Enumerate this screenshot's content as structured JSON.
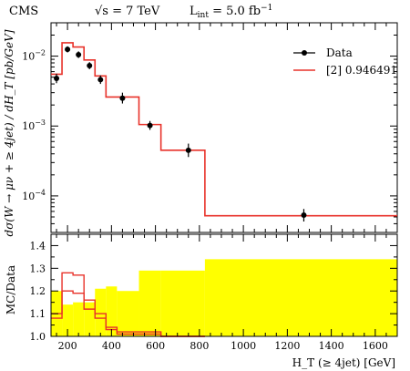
{
  "header": {
    "experiment": "CMS",
    "energy": "√s = 7 TeV",
    "luminosity": "L",
    "luminosity_sub": "int",
    "luminosity_value": " = 5.0 fb",
    "luminosity_exp": "−1"
  },
  "chart_data": [
    {
      "type": "line",
      "panel": "main",
      "ylabel": "dσ(W → μν + ≥ 4jet) / dH_T [pb/GeV]",
      "yscale": "log",
      "ylim": [
        3e-05,
        0.03
      ],
      "xlim": [
        125,
        1700
      ],
      "y_ticks": [
        {
          "value": 0.01,
          "label": "10",
          "exp": "−2"
        },
        {
          "value": 0.001,
          "label": "10",
          "exp": "−3"
        },
        {
          "value": 0.0001,
          "label": "10",
          "exp": "−4"
        }
      ],
      "legend": {
        "position": "top-right",
        "entries": [
          {
            "label": "Data",
            "color": "#000000",
            "marker": "point-errorbar"
          },
          {
            "label": "[2] 0.946491",
            "color": "#e8322a",
            "marker": "line"
          }
        ]
      },
      "series": [
        {
          "name": "Data",
          "color": "#000000",
          "points": [
            {
              "x": 150,
              "y": 0.0048,
              "ylow": 0.0041,
              "yhigh": 0.0056
            },
            {
              "x": 200,
              "y": 0.0125,
              "ylow": 0.0113,
              "yhigh": 0.0138
            },
            {
              "x": 250,
              "y": 0.0105,
              "ylow": 0.0094,
              "yhigh": 0.0117
            },
            {
              "x": 300,
              "y": 0.0073,
              "ylow": 0.0065,
              "yhigh": 0.0082
            },
            {
              "x": 350,
              "y": 0.0046,
              "ylow": 0.004,
              "yhigh": 0.0053
            },
            {
              "x": 450,
              "y": 0.0025,
              "ylow": 0.0021,
              "yhigh": 0.003
            },
            {
              "x": 575,
              "y": 0.00102,
              "ylow": 0.00088,
              "yhigh": 0.00118
            },
            {
              "x": 750,
              "y": 0.00045,
              "ylow": 0.00036,
              "yhigh": 0.00056
            },
            {
              "x": 1275,
              "y": 5.3e-05,
              "ylow": 4.3e-05,
              "yhigh": 6.5e-05
            }
          ]
        },
        {
          "name": "[2] 0.946491",
          "color": "#e8322a",
          "type": "step",
          "edges": [
            125,
            175,
            225,
            275,
            325,
            375,
            425,
            525,
            625,
            825,
            1700
          ],
          "values": [
            0.0055,
            0.0155,
            0.0135,
            0.0088,
            0.0052,
            0.0026,
            0.0026,
            0.00105,
            0.00045,
            5.2e-05
          ]
        }
      ]
    },
    {
      "type": "area",
      "panel": "ratio",
      "ylabel": "MC/Data",
      "xlabel": "H_T (≥ 4jet) [GeV]",
      "ylim": [
        1.0,
        1.45
      ],
      "xlim": [
        125,
        1700
      ],
      "x_ticks": [
        200,
        400,
        600,
        800,
        1000,
        1200,
        1400,
        1600
      ],
      "y_ticks": [
        1.0,
        1.1,
        1.2,
        1.3,
        1.4
      ],
      "series": [
        {
          "name": "uncertainty band",
          "color": "#ffff00",
          "type": "step-band",
          "edges": [
            125,
            175,
            225,
            275,
            325,
            375,
            425,
            525,
            625,
            825,
            1700
          ],
          "values": [
            1.2,
            1.14,
            1.15,
            1.15,
            1.21,
            1.22,
            1.2,
            1.29,
            1.29,
            1.34
          ]
        },
        {
          "name": "[2] 0.946491",
          "color": "#e8322a",
          "type": "step",
          "edges": [
            125,
            175,
            225,
            275,
            325,
            375,
            425,
            525,
            625,
            825
          ],
          "values": [
            1.1,
            1.28,
            1.27,
            1.16,
            1.1,
            1.04,
            1.02,
            1.02,
            1.0
          ]
        },
        {
          "name": "[2] 0.946491 lower",
          "color": "#e8322a",
          "type": "step",
          "edges": [
            125,
            175,
            225,
            275,
            325,
            375,
            425,
            525,
            625,
            825
          ],
          "values": [
            1.08,
            1.2,
            1.19,
            1.12,
            1.08,
            1.03,
            1.01,
            1.01,
            1.0
          ]
        }
      ]
    }
  ]
}
